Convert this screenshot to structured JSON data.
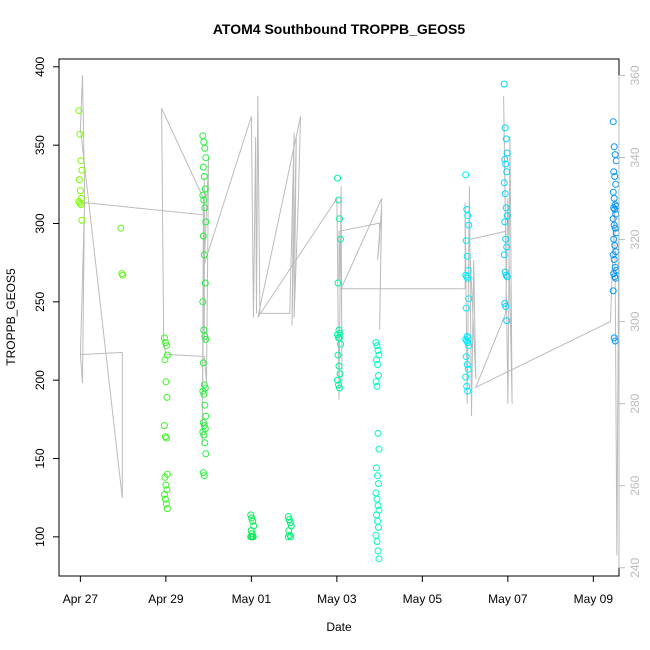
{
  "chart_data": {
    "type": "scatter",
    "title": "ATOM4 Southbound TROPPB_GEOS5",
    "xlabel": "Date",
    "ylabel": "TROPPB_GEOS5",
    "x_ticks": [
      "Apr 27",
      "Apr 29",
      "May 01",
      "May 03",
      "May 05",
      "May 07",
      "May 09"
    ],
    "x_range_days": [
      -0.5,
      12.6
    ],
    "y_left_ticks": [
      100,
      150,
      200,
      250,
      300,
      350,
      400
    ],
    "y_left_range": [
      75,
      405
    ],
    "y_right_ticks": [
      240,
      260,
      280,
      300,
      320,
      340,
      360
    ],
    "y_right_range": [
      238,
      364
    ],
    "right_axis_color": "#bbbbbb",
    "grid": false,
    "point_marker": "open-circle",
    "color_gradient": [
      "#7cfc00",
      "#00ee55",
      "#00ffff",
      "#0099ff"
    ],
    "clusters": [
      {
        "day": 0.0,
        "values": [
          372,
          357,
          340,
          334,
          328,
          321,
          316,
          314,
          313,
          312,
          302
        ]
      },
      {
        "day": 0.98,
        "values": [
          297,
          268,
          267
        ]
      },
      {
        "day": 2.0,
        "values": [
          227,
          224,
          222,
          216,
          213,
          199,
          189,
          171,
          164,
          163,
          140,
          138,
          133,
          130,
          127,
          124,
          121,
          118
        ]
      },
      {
        "day": 2.9,
        "values": [
          356,
          352,
          348,
          342,
          336,
          330,
          322,
          318,
          315,
          310,
          301,
          292,
          280,
          262,
          250,
          232,
          228,
          226,
          211,
          197,
          195,
          193,
          191,
          184,
          177,
          173,
          171,
          169,
          167,
          165,
          160,
          153,
          141,
          139
        ]
      },
      {
        "day": 4.02,
        "values": [
          114,
          112,
          110,
          107,
          104,
          102,
          100,
          100,
          100,
          100
        ]
      },
      {
        "day": 4.9,
        "values": [
          113,
          111,
          109,
          107,
          104,
          101,
          100,
          100
        ]
      },
      {
        "day": 6.05,
        "values": [
          329,
          315,
          303,
          290,
          262,
          232,
          230,
          229,
          227,
          227,
          223,
          216,
          209,
          204,
          200,
          197,
          195
        ]
      },
      {
        "day": 6.95,
        "values": [
          224,
          222,
          219,
          216,
          213,
          210,
          203,
          199,
          196,
          166,
          156,
          144,
          139,
          134,
          128,
          124,
          120,
          117,
          114,
          110,
          106,
          101,
          97,
          91,
          86
        ]
      },
      {
        "day": 9.05,
        "values": [
          331,
          309,
          305,
          299,
          289,
          279,
          270,
          267,
          266,
          265,
          252,
          246,
          228,
          227,
          226,
          225,
          224,
          222,
          215,
          210,
          207,
          202,
          196,
          193
        ]
      },
      {
        "day": 9.95,
        "values": [
          389,
          361,
          354,
          345,
          341,
          338,
          333,
          326,
          319,
          310,
          305,
          301,
          290,
          285,
          280,
          269,
          267,
          266,
          249,
          247,
          238
        ]
      },
      {
        "day": 12.5,
        "values": [
          365,
          349,
          344,
          340,
          333,
          330,
          325,
          320,
          316,
          312,
          311,
          310,
          309,
          306,
          303,
          299,
          297,
          294,
          290,
          286,
          282,
          280,
          277,
          272,
          270,
          268,
          266,
          265,
          257,
          227,
          225
        ]
      }
    ],
    "right_axis_series": {
      "name": "",
      "color": "#bbbbbb",
      "type": "line",
      "path": [
        [
          0.0,
          292
        ],
        [
          0.1,
          292
        ],
        [
          0.98,
          292.5
        ],
        [
          0.98,
          283
        ],
        [
          0.98,
          274
        ],
        [
          0.98,
          257
        ],
        [
          0.0,
          347
        ],
        [
          0.05,
          360
        ],
        [
          0.1,
          332
        ],
        [
          0.05,
          285
        ],
        [
          0.0,
          292
        ],
        [
          0.1,
          329
        ],
        [
          2.9,
          326
        ],
        [
          2.9,
          295
        ],
        [
          2.9,
          335
        ],
        [
          2.85,
          270
        ],
        [
          2.88,
          330
        ],
        [
          1.9,
          352
        ],
        [
          1.95,
          295
        ],
        [
          2.0,
          292
        ],
        [
          2.9,
          291.5
        ],
        [
          2.95,
          285
        ],
        [
          3.0,
          340
        ],
        [
          2.9,
          314
        ],
        [
          4.0,
          350
        ],
        [
          4.05,
          301
        ],
        [
          4.1,
          345
        ],
        [
          4.12,
          302
        ],
        [
          4.15,
          355
        ],
        [
          4.2,
          302
        ],
        [
          4.9,
          302
        ],
        [
          5.0,
          346
        ],
        [
          4.95,
          299
        ],
        [
          5.05,
          345
        ],
        [
          5.0,
          301
        ],
        [
          5.1,
          330
        ],
        [
          5.15,
          350
        ],
        [
          4.15,
          301
        ],
        [
          6.0,
          330
        ],
        [
          6.05,
          281
        ],
        [
          6.1,
          333
        ],
        [
          6.12,
          285
        ],
        [
          6.1,
          326
        ],
        [
          6.05,
          310
        ],
        [
          6.05,
          322
        ],
        [
          7.0,
          324
        ],
        [
          7.0,
          320
        ],
        [
          6.95,
          315
        ],
        [
          7.05,
          328
        ],
        [
          7.0,
          298
        ],
        [
          7.05,
          330
        ],
        [
          6.1,
          308
        ],
        [
          9.0,
          308
        ],
        [
          9.0,
          329
        ],
        [
          9.05,
          280
        ],
        [
          9.1,
          333
        ],
        [
          9.15,
          277
        ],
        [
          9.2,
          315
        ],
        [
          9.25,
          286
        ],
        [
          9.1,
          320
        ],
        [
          9.95,
          322
        ],
        [
          9.9,
          355
        ],
        [
          10.0,
          280
        ],
        [
          10.05,
          345
        ],
        [
          10.1,
          280
        ],
        [
          10.0,
          330
        ],
        [
          9.95,
          302
        ],
        [
          9.25,
          284
        ],
        [
          12.4,
          300
        ],
        [
          12.5,
          330
        ],
        [
          12.55,
          243
        ],
        [
          12.6,
          332
        ],
        [
          12.6,
          275
        ]
      ]
    }
  }
}
